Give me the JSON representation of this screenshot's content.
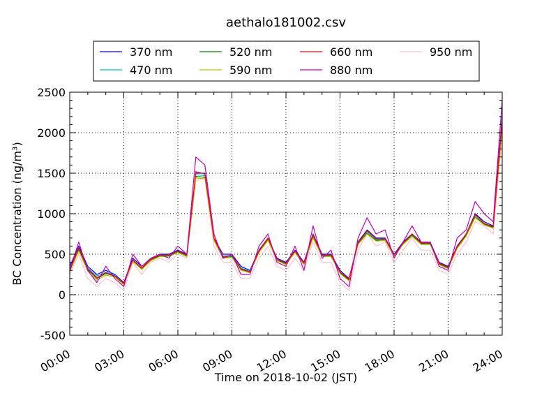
{
  "chart_data": {
    "type": "line",
    "title": "aethalo181002.csv",
    "xlabel": "Time on 2018-10-02 (JST)",
    "ylabel": "BC Concentration (ng/m³)",
    "xlim": [
      "00:00",
      "24:00"
    ],
    "ylim": [
      -500,
      2500
    ],
    "xticks": [
      "00:00",
      "03:00",
      "06:00",
      "09:00",
      "12:00",
      "15:00",
      "18:00",
      "21:00",
      "24:00"
    ],
    "yticks": [
      -500,
      0,
      500,
      1000,
      1500,
      2000,
      2500
    ],
    "grid": true,
    "legend_position": "top-center",
    "x_hours": [
      0,
      0.5,
      1,
      1.5,
      2,
      2.5,
      3,
      3.5,
      4,
      4.5,
      5,
      5.5,
      6,
      6.5,
      7,
      7.5,
      8,
      8.5,
      9,
      9.5,
      10,
      10.5,
      11,
      11.5,
      12,
      12.5,
      13,
      13.5,
      14,
      14.5,
      15,
      15.5,
      16,
      16.5,
      17,
      17.5,
      18,
      18.5,
      19,
      19.5,
      20,
      20.5,
      21,
      21.5,
      22,
      22.5,
      23,
      23.5,
      24
    ],
    "series": [
      {
        "name": "370 nm",
        "color": "#0000ff",
        "values": [
          350,
          600,
          350,
          250,
          300,
          250,
          150,
          450,
          350,
          450,
          500,
          500,
          550,
          500,
          1500,
          1500,
          700,
          500,
          500,
          350,
          300,
          550,
          700,
          450,
          400,
          550,
          400,
          750,
          500,
          500,
          300,
          200,
          650,
          800,
          700,
          700,
          500,
          650,
          750,
          650,
          650,
          400,
          350,
          600,
          750,
          1000,
          900,
          850,
          2200
        ]
      },
      {
        "name": "470 nm",
        "color": "#00bfbf",
        "values": [
          320,
          580,
          330,
          230,
          280,
          240,
          140,
          430,
          330,
          440,
          490,
          490,
          540,
          490,
          1480,
          1470,
          690,
          480,
          480,
          330,
          290,
          540,
          690,
          440,
          390,
          540,
          390,
          730,
          490,
          490,
          280,
          190,
          640,
          780,
          680,
          690,
          490,
          640,
          740,
          640,
          640,
          390,
          340,
          590,
          740,
          980,
          880,
          840,
          2150
        ]
      },
      {
        "name": "520 nm",
        "color": "#008000",
        "values": [
          300,
          560,
          310,
          200,
          260,
          230,
          130,
          420,
          320,
          430,
          480,
          480,
          530,
          480,
          1460,
          1450,
          680,
          460,
          470,
          310,
          280,
          530,
          680,
          430,
          380,
          530,
          380,
          710,
          480,
          480,
          270,
          180,
          630,
          760,
          670,
          680,
          480,
          630,
          730,
          630,
          630,
          380,
          330,
          580,
          730,
          960,
          870,
          830,
          2100
        ]
      },
      {
        "name": "590 nm",
        "color": "#bfbf00",
        "values": [
          280,
          540,
          290,
          180,
          240,
          220,
          120,
          410,
          310,
          420,
          470,
          470,
          520,
          470,
          1440,
          1430,
          670,
          450,
          460,
          300,
          270,
          520,
          670,
          420,
          370,
          520,
          370,
          700,
          470,
          470,
          260,
          170,
          620,
          750,
          660,
          670,
          470,
          620,
          720,
          620,
          620,
          370,
          320,
          570,
          720,
          950,
          860,
          820,
          2050
        ]
      },
      {
        "name": "660 nm",
        "color": "#ff0000",
        "values": [
          300,
          580,
          320,
          210,
          270,
          230,
          140,
          430,
          330,
          440,
          490,
          490,
          540,
          490,
          1520,
          1490,
          700,
          470,
          490,
          320,
          280,
          540,
          700,
          440,
          390,
          540,
          390,
          740,
          490,
          490,
          280,
          190,
          640,
          790,
          690,
          690,
          490,
          640,
          750,
          640,
          640,
          390,
          340,
          590,
          750,
          990,
          880,
          840,
          2150
        ]
      },
      {
        "name": "880 nm",
        "color": "#bf00bf",
        "values": [
          300,
          650,
          300,
          150,
          350,
          200,
          100,
          500,
          350,
          450,
          500,
          450,
          600,
          500,
          1700,
          1600,
          750,
          450,
          500,
          250,
          250,
          600,
          750,
          400,
          350,
          600,
          300,
          850,
          450,
          550,
          200,
          100,
          700,
          950,
          750,
          800,
          450,
          650,
          850,
          650,
          650,
          350,
          300,
          700,
          800,
          1150,
          1000,
          900,
          2400
        ]
      },
      {
        "name": "950 nm",
        "color": "#ffc0cb",
        "values": [
          250,
          500,
          200,
          100,
          200,
          150,
          50,
          400,
          250,
          400,
          450,
          400,
          500,
          450,
          1400,
          1450,
          600,
          400,
          400,
          200,
          200,
          450,
          600,
          350,
          300,
          450,
          300,
          650,
          400,
          400,
          150,
          50,
          550,
          750,
          600,
          650,
          400,
          550,
          700,
          550,
          550,
          300,
          250,
          500,
          650,
          900,
          850,
          750,
          2000
        ]
      }
    ]
  }
}
